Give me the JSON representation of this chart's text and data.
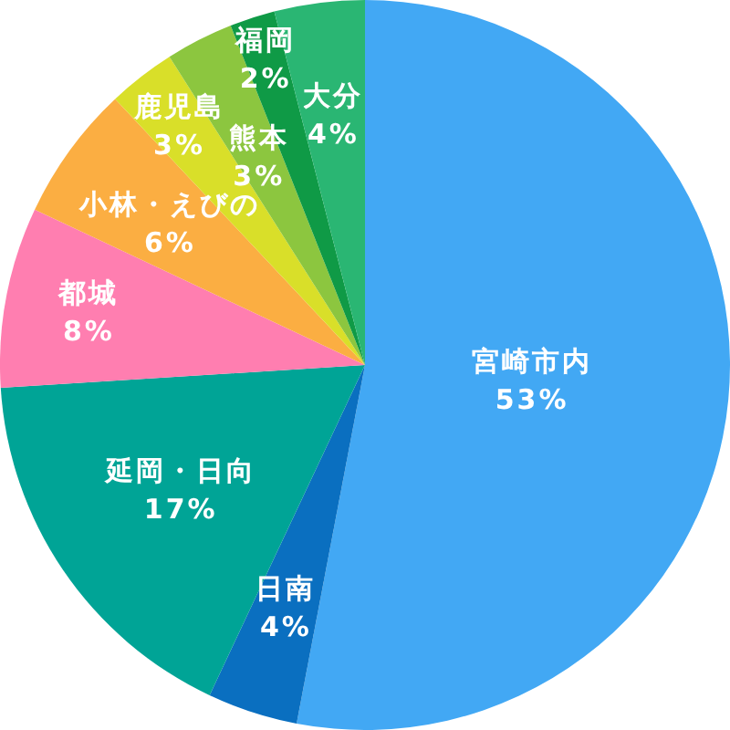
{
  "chart_data": {
    "type": "pie",
    "categories": [
      "宮崎市内",
      "日南",
      "延岡・日向",
      "都城",
      "小林・えびの",
      "鹿児島",
      "熊本",
      "福岡",
      "大分"
    ],
    "values": [
      53,
      4,
      17,
      8,
      6,
      3,
      3,
      2,
      4
    ],
    "colors": [
      "#42a8f4",
      "#0a6fc0",
      "#00a496",
      "#ff7eb0",
      "#fbae42",
      "#d9df29",
      "#8cc63f",
      "#0f9a46",
      "#2ab673"
    ],
    "value_labels": [
      "53%",
      "4%",
      "17%",
      "8%",
      "6%",
      "3%",
      "3%",
      "2%",
      "4%"
    ]
  }
}
